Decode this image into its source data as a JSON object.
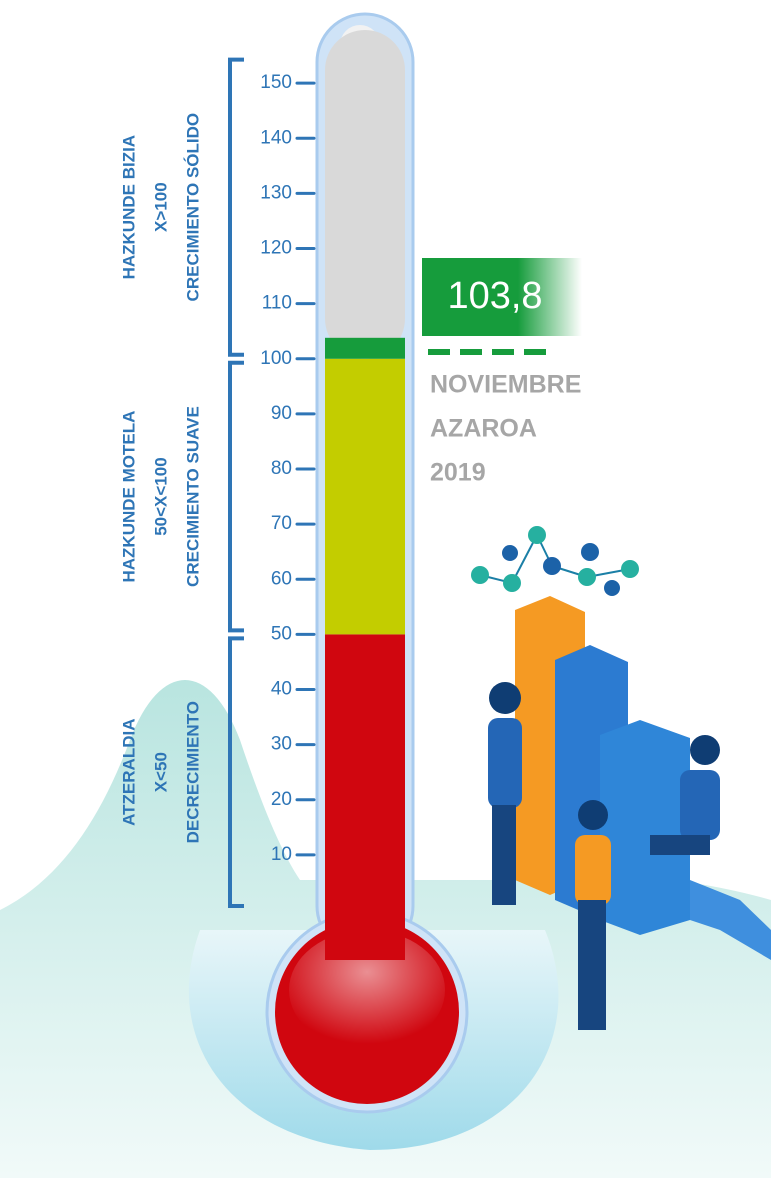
{
  "chart_data": {
    "type": "thermometer",
    "value": 103.8,
    "value_label": "103,8",
    "value_color": "#169c3c",
    "ylim": [
      0,
      160
    ],
    "yticks": [
      10,
      20,
      30,
      40,
      50,
      60,
      70,
      80,
      90,
      100,
      110,
      120,
      130,
      140,
      150
    ],
    "bands": [
      {
        "from": 0,
        "to": 50,
        "color": "#d0060f",
        "lines": [
          "ATZERALDIA",
          "X<50",
          "DECRECIMIENTO"
        ]
      },
      {
        "from": 50,
        "to": 100,
        "color": "#c3cd00",
        "lines": [
          "HAZKUNDE MOTELA",
          "50<X<100",
          "CRECIMIENTO SUAVE"
        ]
      },
      {
        "from": 100,
        "to": 155,
        "color": "#d9d9d9",
        "lines": [
          "HAZKUNDE BIZIA",
          "X>100",
          "CRECIMIENTO SÓLIDO"
        ]
      }
    ],
    "annotation": [
      "NOVIEMBRE",
      "AZAROA",
      "2019"
    ]
  }
}
